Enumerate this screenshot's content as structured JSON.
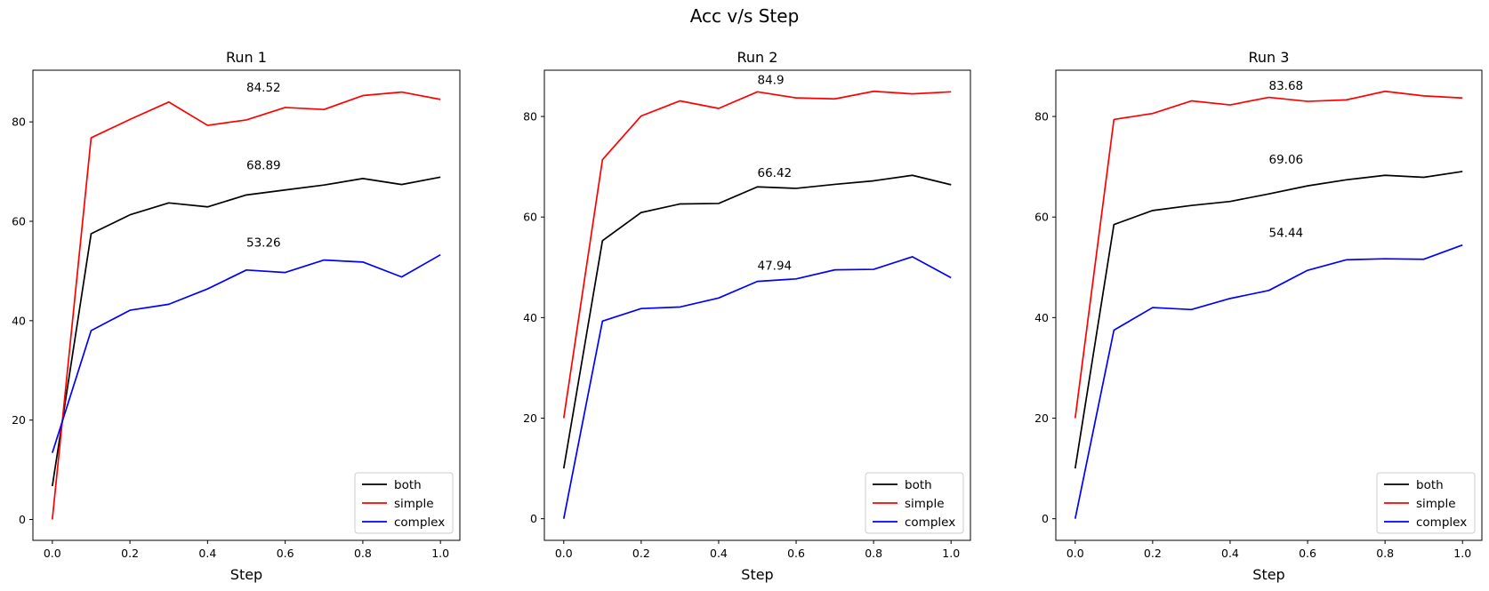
{
  "suptitle": "Acc v/s Step",
  "chart_data": [
    {
      "type": "line",
      "title": "Run 1",
      "xlabel": "Step",
      "ylabel": "",
      "xlim": [
        -0.05,
        1.05
      ],
      "ylim": [
        -4.2,
        90.4
      ],
      "xticks": [
        0.0,
        0.2,
        0.4,
        0.6,
        0.8,
        1.0
      ],
      "xtick_labels": [
        "0.0",
        "0.2",
        "0.4",
        "0.6",
        "0.8",
        "1.0"
      ],
      "yticks": [
        0,
        20,
        40,
        60,
        80
      ],
      "ytick_labels": [
        "0",
        "20",
        "40",
        "60",
        "80"
      ],
      "x": [
        0.0,
        0.1,
        0.2,
        0.3,
        0.4,
        0.5,
        0.6,
        0.7,
        0.8,
        0.9,
        1.0
      ],
      "series": [
        {
          "name": "both",
          "color": "#000000",
          "values": [
            6.7,
            57.5,
            61.3,
            63.7,
            62.9,
            65.3,
            66.3,
            67.3,
            68.6,
            67.4,
            68.89
          ]
        },
        {
          "name": "simple",
          "color": "#ff0000",
          "values": [
            0.0,
            76.8,
            80.5,
            84.0,
            79.3,
            80.4,
            82.9,
            82.5,
            85.3,
            86.0,
            84.52
          ]
        },
        {
          "name": "complex",
          "color": "#0000ff",
          "values": [
            13.4,
            38.0,
            42.1,
            43.3,
            46.4,
            50.2,
            49.7,
            52.2,
            51.8,
            48.8,
            53.26
          ]
        }
      ],
      "annotations": [
        {
          "x": 0.5,
          "y": 84.52,
          "text": "84.52"
        },
        {
          "x": 0.5,
          "y": 68.89,
          "text": "68.89"
        },
        {
          "x": 0.5,
          "y": 53.26,
          "text": "53.26"
        }
      ],
      "legend": "lower right",
      "grid": false
    },
    {
      "type": "line",
      "title": "Run 2",
      "xlabel": "Step",
      "ylabel": "",
      "xlim": [
        -0.05,
        1.05
      ],
      "ylim": [
        -4.3,
        89.2
      ],
      "xticks": [
        0.0,
        0.2,
        0.4,
        0.6,
        0.8,
        1.0
      ],
      "xtick_labels": [
        "0.0",
        "0.2",
        "0.4",
        "0.6",
        "0.8",
        "1.0"
      ],
      "yticks": [
        0,
        20,
        40,
        60,
        80
      ],
      "ytick_labels": [
        "0",
        "20",
        "40",
        "60",
        "80"
      ],
      "x": [
        0.0,
        0.1,
        0.2,
        0.3,
        0.4,
        0.5,
        0.6,
        0.7,
        0.8,
        0.9,
        1.0
      ],
      "series": [
        {
          "name": "both",
          "color": "#000000",
          "values": [
            10.0,
            55.3,
            60.9,
            62.6,
            62.7,
            66.0,
            65.7,
            66.5,
            67.2,
            68.3,
            66.42
          ]
        },
        {
          "name": "simple",
          "color": "#ff0000",
          "values": [
            20.0,
            71.4,
            80.1,
            83.1,
            81.6,
            84.9,
            83.7,
            83.5,
            85.0,
            84.5,
            84.9
          ]
        },
        {
          "name": "complex",
          "color": "#0000ff",
          "values": [
            0.0,
            39.3,
            41.8,
            42.1,
            43.9,
            47.2,
            47.7,
            49.5,
            49.6,
            52.1,
            47.94
          ]
        }
      ],
      "annotations": [
        {
          "x": 0.5,
          "y": 84.9,
          "text": "84.9"
        },
        {
          "x": 0.5,
          "y": 66.42,
          "text": "66.42"
        },
        {
          "x": 0.5,
          "y": 47.94,
          "text": "47.94"
        }
      ],
      "legend": "lower right",
      "grid": false
    },
    {
      "type": "line",
      "title": "Run 3",
      "xlabel": "Step",
      "ylabel": "",
      "xlim": [
        -0.05,
        1.05
      ],
      "ylim": [
        -4.3,
        89.2
      ],
      "xticks": [
        0.0,
        0.2,
        0.4,
        0.6,
        0.8,
        1.0
      ],
      "xtick_labels": [
        "0.0",
        "0.2",
        "0.4",
        "0.6",
        "0.8",
        "1.0"
      ],
      "yticks": [
        0,
        20,
        40,
        60,
        80
      ],
      "ytick_labels": [
        "0",
        "20",
        "40",
        "60",
        "80"
      ],
      "x": [
        0.0,
        0.1,
        0.2,
        0.3,
        0.4,
        0.5,
        0.6,
        0.7,
        0.8,
        0.9,
        1.0
      ],
      "series": [
        {
          "name": "both",
          "color": "#000000",
          "values": [
            10.0,
            58.5,
            61.3,
            62.3,
            63.1,
            64.6,
            66.2,
            67.4,
            68.3,
            67.9,
            69.06
          ]
        },
        {
          "name": "simple",
          "color": "#ff0000",
          "values": [
            20.0,
            79.4,
            80.6,
            83.1,
            82.3,
            83.8,
            83.0,
            83.3,
            85.0,
            84.1,
            83.68
          ]
        },
        {
          "name": "complex",
          "color": "#0000ff",
          "values": [
            0.0,
            37.5,
            42.0,
            41.6,
            43.8,
            45.4,
            49.4,
            51.5,
            51.7,
            51.6,
            54.44
          ]
        }
      ],
      "annotations": [
        {
          "x": 0.5,
          "y": 83.68,
          "text": "83.68"
        },
        {
          "x": 0.5,
          "y": 69.06,
          "text": "69.06"
        },
        {
          "x": 0.5,
          "y": 54.44,
          "text": "54.44"
        }
      ],
      "legend": "lower right",
      "grid": false
    }
  ]
}
